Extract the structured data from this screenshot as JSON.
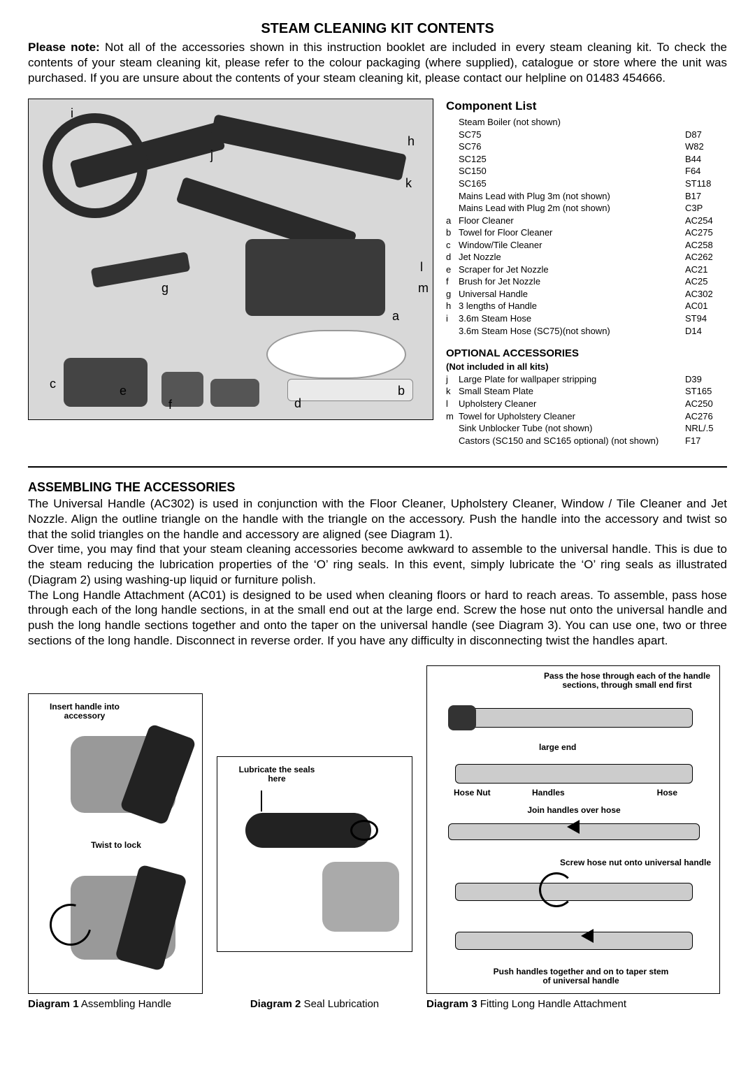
{
  "title": "STEAM CLEANING KIT CONTENTS",
  "intro_lead": "Please note:",
  "intro_body": " Not all of the accessories shown in this instruction booklet are included in every steam cleaning kit. To check the contents of your steam cleaning kit, please refer to the colour packaging (where supplied), catalogue or store where the unit was purchased. If you are unsure about the contents of your steam cleaning kit, please contact our helpline on 01483 454666.",
  "image_labels": {
    "i": "i",
    "h": "h",
    "j": "j",
    "k": "k",
    "l": "l",
    "m": "m",
    "g": "g",
    "a": "a",
    "c": "c",
    "e": "e",
    "f": "f",
    "d": "d",
    "b": "b"
  },
  "component_list_title": "Component List",
  "components_noletter": [
    {
      "name": "Steam Boiler (not shown)",
      "code": ""
    },
    {
      "name": "SC75",
      "code": "D87"
    },
    {
      "name": "SC76",
      "code": "W82"
    },
    {
      "name": "SC125",
      "code": "B44"
    },
    {
      "name": "SC150",
      "code": "F64"
    },
    {
      "name": "SC165",
      "code": "ST118"
    },
    {
      "name": "Mains Lead with Plug 3m (not shown)",
      "code": "B17"
    },
    {
      "name": "Mains Lead with Plug 2m (not shown)",
      "code": "C3P"
    }
  ],
  "components_letter": [
    {
      "key": "a",
      "name": "Floor Cleaner",
      "code": "AC254"
    },
    {
      "key": "b",
      "name": "Towel for Floor Cleaner",
      "code": "AC275"
    },
    {
      "key": "c",
      "name": "Window/Tile Cleaner",
      "code": "AC258"
    },
    {
      "key": "d",
      "name": "Jet Nozzle",
      "code": "AC262"
    },
    {
      "key": "e",
      "name": "Scraper for Jet Nozzle",
      "code": "AC21"
    },
    {
      "key": "f",
      "name": "Brush for Jet Nozzle",
      "code": "AC25"
    },
    {
      "key": "g",
      "name": "Universal Handle",
      "code": "AC302"
    },
    {
      "key": "h",
      "name": "3 lengths of Handle",
      "code": "AC01"
    },
    {
      "key": "i",
      "name": "3.6m Steam Hose",
      "code": "ST94"
    },
    {
      "key": "",
      "name": "3.6m Steam Hose (SC75)(not shown)",
      "code": "D14"
    }
  ],
  "optional_title": "OPTIONAL ACCESSORIES",
  "optional_sub": "(Not included in all kits)",
  "optional_items": [
    {
      "key": "j",
      "name": "Large Plate for wallpaper stripping",
      "code": "D39"
    },
    {
      "key": "k",
      "name": "Small Steam Plate",
      "code": "ST165"
    },
    {
      "key": "l",
      "name": "Upholstery Cleaner",
      "code": "AC250"
    },
    {
      "key": "m",
      "name": "Towel for Upholstery Cleaner",
      "code": "AC276"
    },
    {
      "key": "",
      "name": "Sink Unblocker Tube (not shown)",
      "code": "NRL/.5"
    },
    {
      "key": "",
      "name": "Castors (SC150 and SC165 optional) (not shown)",
      "code": "F17"
    }
  ],
  "assemble_title": "ASSEMBLING THE ACCESSORIES",
  "assemble_body": "The Universal Handle (AC302) is used in conjunction with the Floor Cleaner, Upholstery Cleaner, Window / Tile Cleaner and Jet Nozzle. Align the outline triangle on the handle with the triangle on the accessory. Push the handle into the accessory and twist so that the solid triangles on the handle and accessory are aligned (see Diagram 1).\nOver time, you may find that your steam cleaning accessories become awkward to assemble to the universal handle. This is due to the steam reducing the lubrication properties of the ‘O’ ring seals. In this event, simply lubricate the ‘O’ ring seals as illustrated (Diagram 2) using washing-up liquid or furniture polish.\nThe Long Handle Attachment (AC01) is designed to be used when cleaning floors or hard to reach areas. To assemble, pass hose through each of the long handle sections, in at the small end out at the large end. Screw the hose nut onto the universal handle and push the long handle sections together and onto the taper on the universal handle (see Diagram 3). You can use one, two or three sections of the long handle. Disconnect in reverse order. If you have any difficulty in disconnecting twist the handles apart.",
  "diag1": {
    "caption_b": "Diagram 1",
    "caption_t": " Assembling Handle",
    "label_top": "Insert handle into accessory",
    "label_bot": "Twist to lock"
  },
  "diag2": {
    "caption_b": "Diagram 2",
    "caption_t": " Seal Lubrication",
    "label": "Lubricate the seals here"
  },
  "diag3": {
    "caption_b": "Diagram 3",
    "caption_t": " Fitting Long Handle Attachment",
    "l1": "Pass the hose through each of the handle sections, through small end first",
    "l2": "large end",
    "l3": "Hose Nut",
    "l4": "Handles",
    "l5": "Hose",
    "l6": "Join handles over hose",
    "l7": "Screw hose nut onto universal handle",
    "l8": "Push handles together and on to taper stem of universal handle"
  },
  "colors": {
    "text": "#000000",
    "bg": "#ffffff",
    "image_bg": "#d8d8d8",
    "shape": "#666666"
  }
}
